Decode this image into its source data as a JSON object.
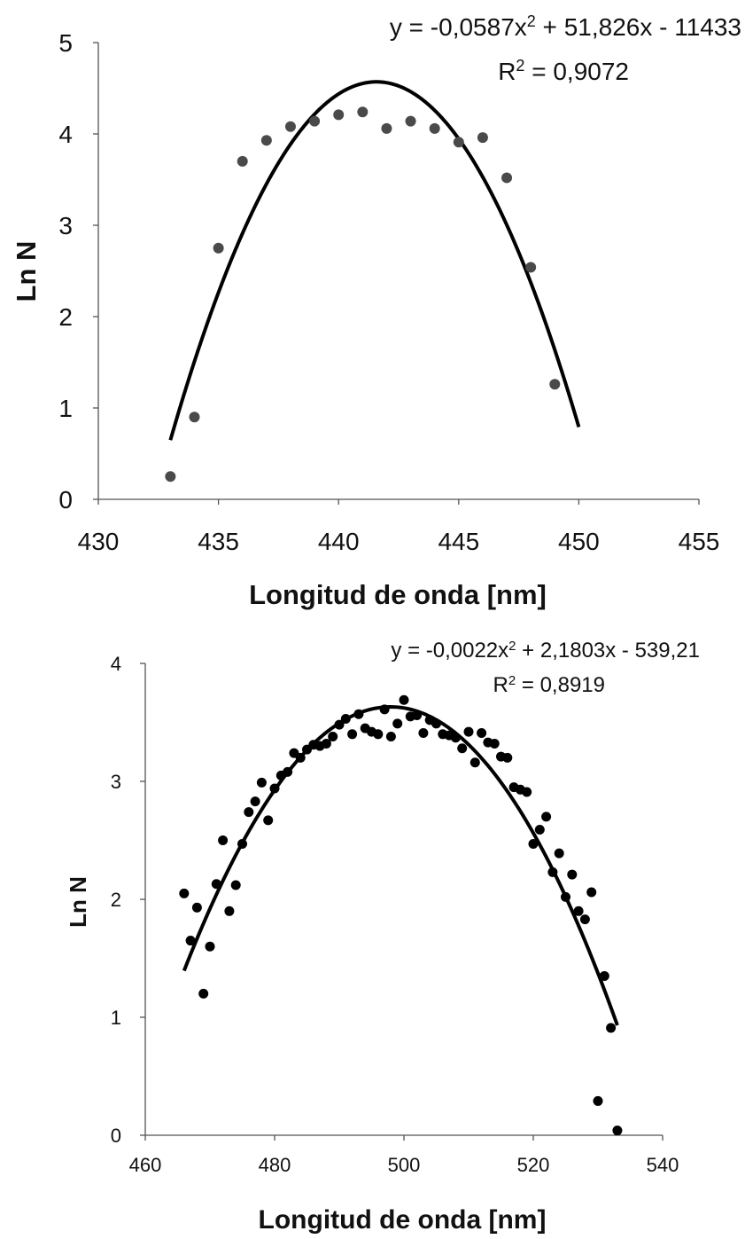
{
  "chart_data": [
    {
      "type": "scatter",
      "xlabel": "Longitud de onda [nm]",
      "ylabel": "Ln N",
      "xlim": [
        430,
        455
      ],
      "ylim": [
        0,
        5
      ],
      "xticks": [
        "430",
        "435",
        "440",
        "445",
        "450",
        "455"
      ],
      "yticks": [
        "0",
        "1",
        "2",
        "3",
        "4",
        "5"
      ],
      "grid": false,
      "points_color": "#4a4a4a",
      "x": [
        433,
        434,
        435,
        436,
        437,
        438,
        439,
        440,
        441,
        442,
        443,
        444,
        445,
        446,
        447,
        448,
        449
      ],
      "y": [
        0.25,
        0.9,
        2.75,
        3.7,
        3.93,
        4.08,
        4.14,
        4.21,
        4.24,
        4.06,
        4.14,
        4.06,
        3.91,
        3.96,
        3.52,
        2.54,
        1.26
      ],
      "trendline": {
        "type": "polynomial",
        "degree": 2,
        "x_range": [
          433,
          450
        ],
        "equation": "y = -0,0587x² + 51,826x - 11433",
        "r2": "R² = 0,9072"
      }
    },
    {
      "type": "scatter",
      "xlabel": "Longitud de onda [nm]",
      "ylabel": "Ln N",
      "xlim": [
        460,
        540
      ],
      "ylim": [
        0,
        4
      ],
      "xticks": [
        "460",
        "480",
        "500",
        "520",
        "540"
      ],
      "yticks": [
        "0",
        "1",
        "2",
        "3",
        "4"
      ],
      "grid": false,
      "points_color": "#000000",
      "x": [
        466,
        467,
        468,
        469,
        470,
        471,
        472,
        473,
        474,
        475,
        476,
        477,
        478,
        479,
        480,
        481,
        482,
        483,
        484,
        485,
        486,
        487,
        488,
        489,
        490,
        491,
        492,
        493,
        494,
        495,
        496,
        497,
        498,
        499,
        500,
        501,
        502,
        503,
        504,
        505,
        506,
        507,
        508,
        509,
        510,
        511,
        512,
        513,
        514,
        515,
        516,
        517,
        518,
        519,
        520,
        521,
        522,
        523,
        524,
        525,
        526,
        527,
        528,
        529,
        530,
        531,
        532,
        533
      ],
      "y": [
        2.05,
        1.65,
        1.93,
        1.2,
        1.6,
        2.13,
        2.5,
        1.9,
        2.12,
        2.47,
        2.74,
        2.83,
        2.99,
        2.67,
        2.94,
        3.05,
        3.08,
        3.24,
        3.2,
        3.27,
        3.31,
        3.3,
        3.32,
        3.38,
        3.48,
        3.53,
        3.4,
        3.57,
        3.45,
        3.42,
        3.4,
        3.61,
        3.38,
        3.49,
        3.69,
        3.55,
        3.56,
        3.41,
        3.52,
        3.49,
        3.4,
        3.39,
        3.37,
        3.28,
        3.42,
        3.16,
        3.41,
        3.33,
        3.32,
        3.21,
        3.2,
        2.95,
        2.93,
        2.91,
        2.47,
        2.59,
        2.7,
        2.23,
        2.39,
        2.02,
        2.21,
        1.9,
        1.83,
        2.06,
        0.29,
        1.35,
        0.91,
        0.04
      ],
      "trendline": {
        "type": "polynomial",
        "degree": 2,
        "x_range": [
          466,
          533
        ],
        "equation": "y = -0,0022x² + 2,1803x - 539,21",
        "r2": "R² = 0,8919"
      }
    }
  ]
}
